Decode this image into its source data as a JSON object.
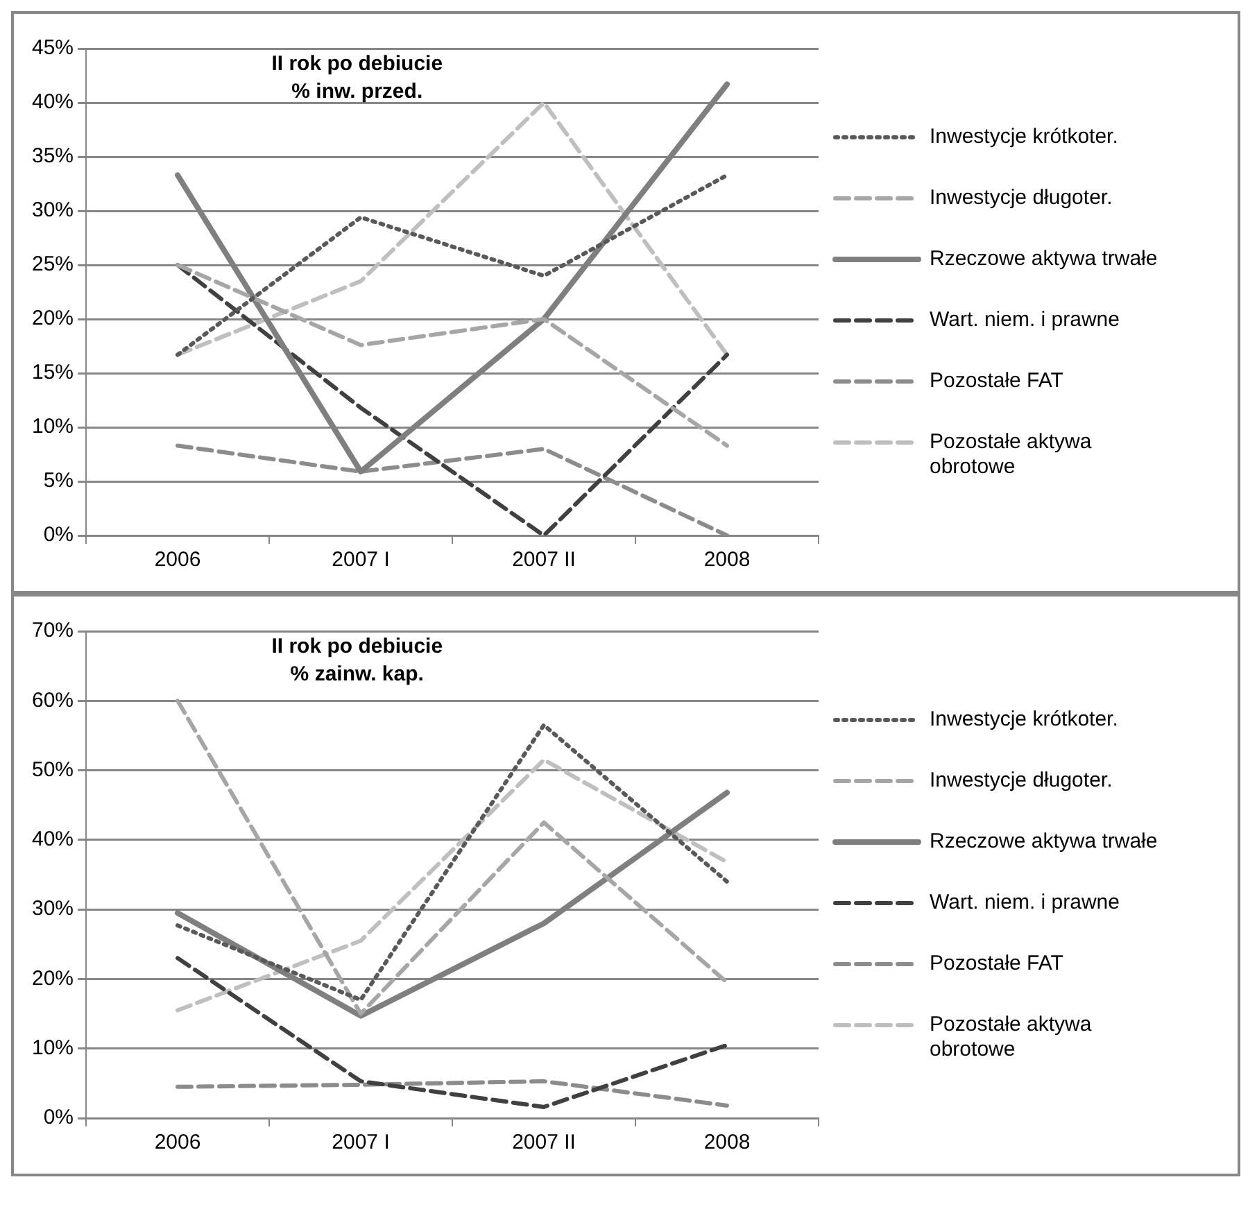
{
  "chart_data": [
    {
      "type": "line",
      "title": "II rok po debiucie\n% inw. przed.",
      "categories": [
        "2006",
        "2007 I",
        "2007 II",
        "2008"
      ],
      "ylim": [
        0,
        45
      ],
      "yticks": [
        {
          "value": 0,
          "label": "0%"
        },
        {
          "value": 5,
          "label": "5%"
        },
        {
          "value": 10,
          "label": "10%"
        },
        {
          "value": 15,
          "label": "15%"
        },
        {
          "value": 20,
          "label": "20%"
        },
        {
          "value": 25,
          "label": "25%"
        },
        {
          "value": 30,
          "label": "30%"
        },
        {
          "value": 35,
          "label": "35%"
        },
        {
          "value": 40,
          "label": "40%"
        },
        {
          "value": 45,
          "label": "45%"
        }
      ],
      "grid": "y",
      "legend": "right",
      "marker": "none",
      "series": [
        {
          "name": "Inwestycje krótkoter.",
          "color": "#595959",
          "line_style": "dotted",
          "values": [
            16.7,
            29.4,
            24.0,
            33.3
          ]
        },
        {
          "name": "Inwestycje długoter.",
          "color": "#a6a6a6",
          "line_style": "dashed",
          "values": [
            25.0,
            17.6,
            20.0,
            8.3
          ]
        },
        {
          "name": "Rzeczowe aktywa trwałe",
          "color": "#7f7f7f",
          "line_style": "solid",
          "values": [
            33.3,
            5.9,
            20.0,
            41.7
          ]
        },
        {
          "name": "Wart. niem. i prawne",
          "color": "#404040",
          "line_style": "dashed",
          "values": [
            25.0,
            11.8,
            0,
            16.7
          ]
        },
        {
          "name": "Pozostałe FAT",
          "color": "#8c8c8c",
          "line_style": "dashed",
          "values": [
            8.3,
            5.9,
            8.0,
            0
          ]
        },
        {
          "name": "Pozostałe aktywa obrotowe",
          "color": "#bfbfbf",
          "line_style": "dashed",
          "values": [
            16.7,
            23.5,
            40.0,
            16.7
          ]
        }
      ]
    },
    {
      "type": "line",
      "title": "II rok po debiucie\n% zainw. kap.",
      "categories": [
        "2006",
        "2007 I",
        "2007 II",
        "2008"
      ],
      "ylim": [
        0,
        70
      ],
      "yticks": [
        {
          "value": 0,
          "label": "0%"
        },
        {
          "value": 10,
          "label": "10%"
        },
        {
          "value": 20,
          "label": "20%"
        },
        {
          "value": 30,
          "label": "30%"
        },
        {
          "value": 40,
          "label": "40%"
        },
        {
          "value": 50,
          "label": "50%"
        },
        {
          "value": 60,
          "label": "60%"
        },
        {
          "value": 70,
          "label": "70%"
        }
      ],
      "grid": "y",
      "legend": "right",
      "marker": "none",
      "series": [
        {
          "name": "Inwestycje krótkoter.",
          "color": "#595959",
          "line_style": "dotted",
          "values": [
            27.7,
            17.0,
            56.5,
            34.0
          ]
        },
        {
          "name": "Inwestycje długoter.",
          "color": "#a6a6a6",
          "line_style": "dashed",
          "values": [
            60.0,
            15.0,
            42.5,
            19.5
          ]
        },
        {
          "name": "Rzeczowe aktywa trwałe",
          "color": "#7f7f7f",
          "line_style": "solid",
          "values": [
            29.5,
            14.7,
            28.0,
            46.8
          ]
        },
        {
          "name": "Wart. niem. i prawne",
          "color": "#404040",
          "line_style": "dashed",
          "values": [
            23.0,
            5.3,
            1.6,
            10.5
          ]
        },
        {
          "name": "Pozostałe FAT",
          "color": "#8c8c8c",
          "line_style": "dashed",
          "values": [
            4.5,
            4.8,
            5.3,
            1.8
          ]
        },
        {
          "name": "Pozostałe aktywa obrotowe",
          "color": "#bfbfbf",
          "line_style": "dashed",
          "values": [
            15.5,
            25.5,
            51.5,
            36.8
          ]
        }
      ]
    }
  ]
}
